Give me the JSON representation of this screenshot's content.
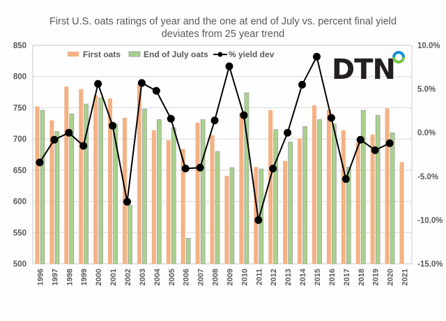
{
  "chart_data": {
    "type": "bar",
    "title": "First U.S. oats ratings of year and the one at end of July vs. percent final yield deviates from 25 year trend",
    "title_lines": [
      "First U.S. oats ratings of year and the one at end of July vs. percent final yield",
      "deviates from 25 year trend"
    ],
    "categories": [
      "1996",
      "1997",
      "1998",
      "1999",
      "2000",
      "2001",
      "2002",
      "2003",
      "2004",
      "2005",
      "2006",
      "2007",
      "2008",
      "2009",
      "2010",
      "2011",
      "2012",
      "2013",
      "2014",
      "2015",
      "2016",
      "2017",
      "2018",
      "2019",
      "2020",
      "2021"
    ],
    "series": [
      {
        "name": "First oats",
        "type": "bar",
        "axis": "left",
        "color": "#f4b183",
        "values": [
          752,
          730,
          784,
          780,
          770,
          765,
          734,
          788,
          714,
          698,
          684,
          726,
          706,
          641,
          742,
          655,
          746,
          665,
          701,
          754,
          747,
          714,
          695,
          707,
          749,
          663
        ]
      },
      {
        "name": "End of July oats",
        "type": "bar",
        "axis": "left",
        "color": "#a9d18e",
        "values": [
          746,
          712,
          740,
          756,
          766,
          724,
          594,
          748,
          731,
          718,
          541,
          731,
          680,
          654,
          774,
          652,
          715,
          695,
          720,
          731,
          724,
          655,
          746,
          738,
          710,
          null
        ]
      },
      {
        "name": "% yield dev",
        "type": "line",
        "axis": "right",
        "color": "#000000",
        "values": [
          -3.4,
          -0.8,
          0.0,
          -1.5,
          5.6,
          0.8,
          -7.9,
          5.7,
          4.8,
          1.6,
          -4.1,
          -4.0,
          1.4,
          7.6,
          2.0,
          -10.0,
          -4.1,
          0.0,
          5.5,
          8.7,
          1.7,
          -5.3,
          -0.8,
          -2.0,
          -1.2,
          null
        ]
      }
    ],
    "y_left": {
      "min": 500,
      "max": 850,
      "step": 50,
      "ticks": [
        "500",
        "550",
        "600",
        "650",
        "700",
        "750",
        "800",
        "850"
      ]
    },
    "y_right": {
      "min": -15,
      "max": 10,
      "step": 5,
      "ticks": [
        "-15.0%",
        "-10.0%",
        "-5.0%",
        "0.0%",
        "5.0%",
        "10.0%"
      ]
    },
    "xlabel": "",
    "ylabel": "",
    "grid": true,
    "legend": {
      "position": "top-center",
      "entries": [
        "First oats",
        "End of July oats",
        "% yield dev"
      ]
    }
  },
  "logo": {
    "text": "DTN",
    "ring_colors": [
      "#1a8fd6",
      "#7ac143"
    ]
  }
}
